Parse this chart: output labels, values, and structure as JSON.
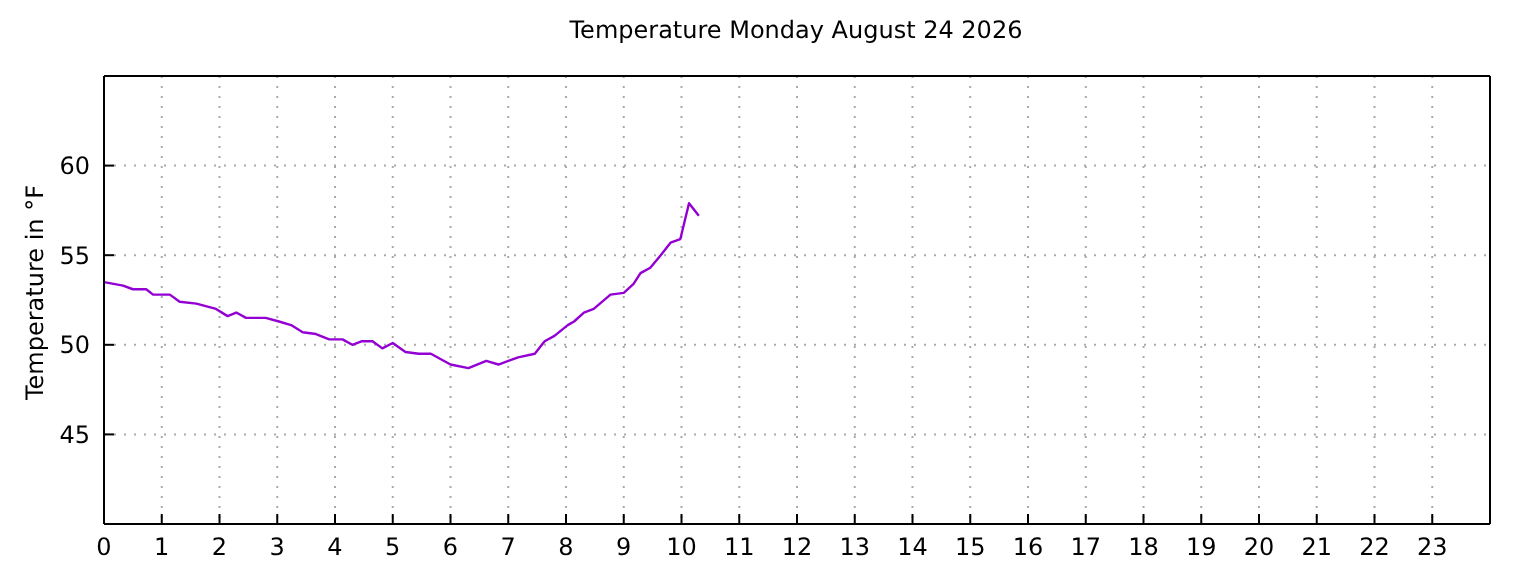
{
  "chart_data": {
    "type": "line",
    "title": "Temperature Monday August 24 2026",
    "ylabel": "Temperature in °F",
    "x": [
      0,
      0.33,
      0.5,
      0.73,
      0.85,
      1.14,
      1.31,
      1.6,
      1.94,
      2.14,
      2.29,
      2.46,
      2.8,
      3.03,
      3.24,
      3.44,
      3.67,
      3.9,
      4.13,
      4.3,
      4.47,
      4.65,
      4.82,
      5.0,
      5.22,
      5.45,
      5.66,
      6.0,
      6.31,
      6.62,
      6.83,
      7.17,
      7.46,
      7.63,
      7.8,
      8.03,
      8.14,
      8.31,
      8.48,
      8.77,
      9.0,
      9.17,
      9.29,
      9.46,
      9.64,
      9.81,
      9.98,
      10.13,
      10.3
    ],
    "series": [
      {
        "color": "#9400d3",
        "values": [
          53.5,
          53.3,
          53.1,
          53.1,
          52.8,
          52.8,
          52.4,
          52.3,
          52.0,
          51.6,
          51.8,
          51.5,
          51.5,
          51.3,
          51.1,
          50.7,
          50.6,
          50.3,
          50.3,
          50.0,
          50.2,
          50.2,
          49.8,
          50.1,
          49.6,
          49.5,
          49.5,
          48.9,
          48.7,
          49.1,
          48.9,
          49.3,
          49.5,
          50.2,
          50.5,
          51.1,
          51.3,
          51.8,
          52.0,
          52.8,
          52.9,
          53.4,
          54.0,
          54.3,
          55.0,
          55.7,
          55.9,
          57.9,
          57.2
        ]
      }
    ],
    "xlim": [
      0,
      24
    ],
    "xticks": [
      0,
      1,
      2,
      3,
      4,
      5,
      6,
      7,
      8,
      9,
      10,
      11,
      12,
      13,
      14,
      15,
      16,
      17,
      18,
      19,
      20,
      21,
      22,
      23
    ],
    "ylim": [
      40,
      65
    ],
    "yticks": [
      45,
      50,
      55,
      60
    ],
    "grid": true,
    "legend": false,
    "marker": "none",
    "line_style": "solid"
  }
}
